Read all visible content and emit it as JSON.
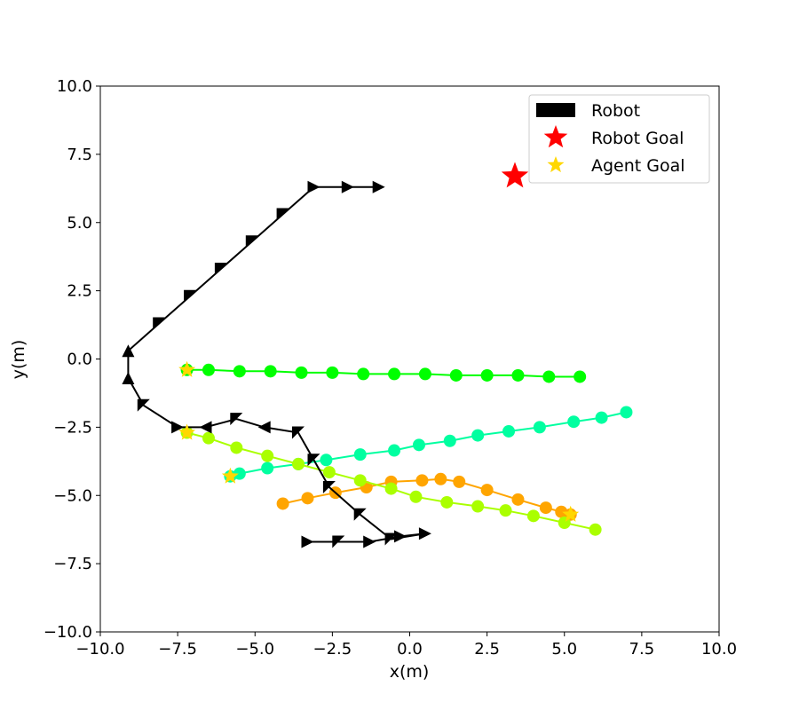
{
  "chart_data": {
    "type": "scatter",
    "title": "",
    "xlabel": "x(m)",
    "ylabel": "y(m)",
    "xlim": [
      -10,
      10
    ],
    "ylim": [
      -10,
      10
    ],
    "grid": false,
    "legend_position": "top-right",
    "xticks": [
      "−10.0",
      "−7.5",
      "−5.0",
      "−2.5",
      "0.0",
      "2.5",
      "5.0",
      "7.5",
      "10.0"
    ],
    "yticks": [
      "10.0",
      "7.5",
      "5.0",
      "2.5",
      "0.0",
      "−2.5",
      "−5.0",
      "−7.5",
      "−10.0"
    ],
    "xtick_values": [
      -10,
      -7.5,
      -5,
      -2.5,
      0,
      2.5,
      5,
      7.5,
      10
    ],
    "ytick_values": [
      10,
      7.5,
      5,
      2.5,
      0,
      -2.5,
      -5,
      -7.5,
      -10
    ],
    "legend": [
      {
        "label": "Robot",
        "marker": "rect",
        "color": "#000000"
      },
      {
        "label": "Robot Goal",
        "marker": "star",
        "color": "#ff0000"
      },
      {
        "label": "Agent Goal",
        "marker": "star",
        "color": "#ffd700"
      }
    ],
    "robot": {
      "color": "#000000",
      "path": [
        {
          "x": -1.0,
          "y": 6.3,
          "dir": "right"
        },
        {
          "x": -2.0,
          "y": 6.3,
          "dir": "right"
        },
        {
          "x": -3.1,
          "y": 6.3,
          "dir": "right"
        },
        {
          "x": -4.1,
          "y": 5.3,
          "dir": "down-left"
        },
        {
          "x": -5.1,
          "y": 4.3,
          "dir": "down-left"
        },
        {
          "x": -6.1,
          "y": 3.3,
          "dir": "down-left"
        },
        {
          "x": -7.1,
          "y": 2.3,
          "dir": "down-left"
        },
        {
          "x": -8.1,
          "y": 1.3,
          "dir": "down-left"
        },
        {
          "x": -9.1,
          "y": 0.3,
          "dir": "up"
        },
        {
          "x": -9.1,
          "y": -0.7,
          "dir": "up"
        },
        {
          "x": -8.6,
          "y": -1.7,
          "dir": "down-left"
        },
        {
          "x": -7.5,
          "y": -2.5,
          "dir": "right"
        },
        {
          "x": -6.6,
          "y": -2.5,
          "dir": "left"
        },
        {
          "x": -5.6,
          "y": -2.2,
          "dir": "down-left"
        },
        {
          "x": -4.7,
          "y": -2.5,
          "dir": "left"
        },
        {
          "x": -3.6,
          "y": -2.7,
          "dir": "down-left"
        },
        {
          "x": -3.1,
          "y": -3.7,
          "dir": "down-left"
        },
        {
          "x": -2.6,
          "y": -4.7,
          "dir": "down-left"
        },
        {
          "x": -1.6,
          "y": -5.7,
          "dir": "down-left"
        },
        {
          "x": -0.6,
          "y": -6.6,
          "dir": "down-left"
        },
        {
          "x": 0.5,
          "y": -6.4,
          "dir": "right"
        },
        {
          "x": -0.3,
          "y": -6.5,
          "dir": "right"
        },
        {
          "x": -1.3,
          "y": -6.7,
          "dir": "right"
        },
        {
          "x": -2.3,
          "y": -6.7,
          "dir": "down-left"
        },
        {
          "x": -3.3,
          "y": -6.7,
          "dir": "right"
        }
      ]
    },
    "robot_goal": {
      "x": 3.4,
      "y": 6.7,
      "color": "#ff0000"
    },
    "agents": [
      {
        "color": "#00ff00",
        "goal": {
          "x": -7.2,
          "y": -0.4
        },
        "x": [
          5.5,
          4.5,
          3.5,
          2.5,
          1.5,
          0.5,
          -0.5,
          -1.5,
          -2.5,
          -3.5,
          -4.5,
          -5.5,
          -6.5,
          -7.2
        ],
        "y": [
          -0.65,
          -0.65,
          -0.6,
          -0.6,
          -0.6,
          -0.55,
          -0.55,
          -0.55,
          -0.5,
          -0.5,
          -0.45,
          -0.45,
          -0.4,
          -0.4
        ]
      },
      {
        "color": "#00ffa0",
        "goal": {
          "x": -5.8,
          "y": -4.3
        },
        "x": [
          7.0,
          6.2,
          5.3,
          4.2,
          3.2,
          2.2,
          1.3,
          0.3,
          -0.5,
          -1.6,
          -2.7,
          -3.6,
          -4.6,
          -5.5,
          -5.8
        ],
        "y": [
          -1.95,
          -2.15,
          -2.3,
          -2.5,
          -2.65,
          -2.8,
          -3.0,
          -3.15,
          -3.35,
          -3.5,
          -3.7,
          -3.85,
          -4.0,
          -4.2,
          -4.3
        ]
      },
      {
        "color": "#ffa500",
        "goal": {
          "x": 5.2,
          "y": -5.7
        },
        "x": [
          -4.1,
          -3.3,
          -2.4,
          -1.4,
          -0.6,
          0.4,
          1.0,
          1.6,
          2.5,
          3.5,
          4.4,
          4.9,
          5.2
        ],
        "y": [
          -5.3,
          -5.1,
          -4.9,
          -4.7,
          -4.5,
          -4.45,
          -4.4,
          -4.5,
          -4.8,
          -5.15,
          -5.45,
          -5.6,
          -5.7
        ]
      },
      {
        "color": "#aaff00",
        "goal": {
          "x": -7.2,
          "y": -2.7
        },
        "x": [
          6.0,
          5.0,
          4.0,
          3.1,
          2.2,
          1.2,
          0.2,
          -0.6,
          -1.6,
          -2.6,
          -3.6,
          -4.6,
          -5.6,
          -6.5,
          -7.2
        ],
        "y": [
          -6.25,
          -6.0,
          -5.75,
          -5.55,
          -5.4,
          -5.25,
          -5.05,
          -4.75,
          -4.45,
          -4.15,
          -3.85,
          -3.55,
          -3.25,
          -2.9,
          -2.7
        ]
      }
    ]
  }
}
